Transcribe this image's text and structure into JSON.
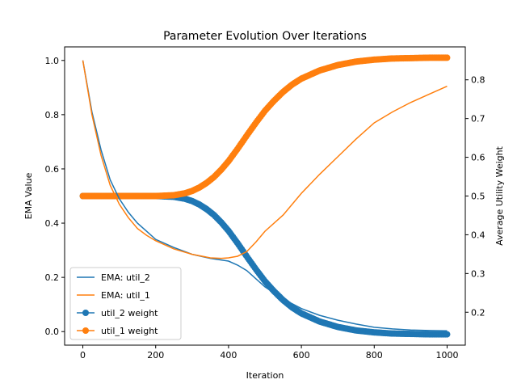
{
  "chart_data": {
    "type": "line",
    "title": "Parameter Evolution Over Iterations",
    "xlabel": "Iteration",
    "ylabel": "EMA Value",
    "y2label": "Average Utility Weight",
    "xlim": [
      -50,
      1050
    ],
    "ylim": [
      -0.05,
      1.05
    ],
    "y2lim": [
      0.115,
      0.885
    ],
    "xticks": [
      0,
      200,
      400,
      600,
      800,
      1000
    ],
    "yticks": [
      0.0,
      0.2,
      0.4,
      0.6,
      0.8,
      1.0
    ],
    "y2ticks": [
      0.2,
      0.3,
      0.4,
      0.5,
      0.6,
      0.7,
      0.8
    ],
    "legend_position": "lower-left",
    "series": [
      {
        "name": "EMA: util_2",
        "axis": "left",
        "style": "line",
        "color": "#1f77b4",
        "x": [
          0,
          25,
          50,
          75,
          100,
          125,
          150,
          175,
          200,
          250,
          300,
          350,
          400,
          425,
          450,
          475,
          500,
          550,
          600,
          650,
          700,
          750,
          800,
          850,
          900,
          950,
          1000
        ],
        "y": [
          1.0,
          0.81,
          0.67,
          0.56,
          0.49,
          0.44,
          0.4,
          0.37,
          0.34,
          0.31,
          0.285,
          0.27,
          0.26,
          0.245,
          0.225,
          0.195,
          0.165,
          0.12,
          0.085,
          0.06,
          0.042,
          0.028,
          0.016,
          0.01,
          0.006,
          0.004,
          0.003
        ]
      },
      {
        "name": "EMA: util_1",
        "axis": "left",
        "style": "line",
        "color": "#ff7f0e",
        "x": [
          0,
          25,
          50,
          75,
          100,
          125,
          150,
          175,
          200,
          250,
          300,
          350,
          380,
          400,
          425,
          450,
          475,
          500,
          550,
          600,
          650,
          700,
          750,
          800,
          850,
          900,
          950,
          1000
        ],
        "y": [
          1.0,
          0.8,
          0.65,
          0.54,
          0.47,
          0.42,
          0.38,
          0.355,
          0.335,
          0.305,
          0.285,
          0.272,
          0.27,
          0.272,
          0.278,
          0.295,
          0.33,
          0.37,
          0.43,
          0.51,
          0.58,
          0.645,
          0.71,
          0.77,
          0.81,
          0.845,
          0.875,
          0.905
        ]
      },
      {
        "name": "util_2 weight",
        "axis": "right",
        "style": "line-markers",
        "color": "#1f77b4",
        "x": [
          0,
          50,
          100,
          150,
          200,
          250,
          280,
          300,
          320,
          340,
          360,
          380,
          400,
          425,
          450,
          475,
          500,
          525,
          550,
          575,
          600,
          650,
          700,
          750,
          800,
          850,
          900,
          950,
          1000
        ],
        "y": [
          0.5,
          0.5,
          0.5,
          0.5,
          0.5,
          0.498,
          0.493,
          0.487,
          0.478,
          0.466,
          0.451,
          0.432,
          0.41,
          0.378,
          0.344,
          0.311,
          0.28,
          0.254,
          0.231,
          0.212,
          0.197,
          0.176,
          0.162,
          0.153,
          0.148,
          0.145,
          0.144,
          0.143,
          0.143
        ]
      },
      {
        "name": "util_1 weight",
        "axis": "right",
        "style": "line-markers",
        "color": "#ff7f0e",
        "x": [
          0,
          50,
          100,
          150,
          200,
          250,
          280,
          300,
          320,
          340,
          360,
          380,
          400,
          425,
          450,
          475,
          500,
          525,
          550,
          575,
          600,
          650,
          700,
          750,
          800,
          850,
          900,
          950,
          1000
        ],
        "y": [
          0.5,
          0.5,
          0.5,
          0.5,
          0.5,
          0.502,
          0.507,
          0.513,
          0.522,
          0.534,
          0.549,
          0.568,
          0.59,
          0.622,
          0.656,
          0.689,
          0.72,
          0.746,
          0.769,
          0.788,
          0.803,
          0.824,
          0.838,
          0.847,
          0.852,
          0.855,
          0.856,
          0.857,
          0.857
        ]
      }
    ]
  }
}
